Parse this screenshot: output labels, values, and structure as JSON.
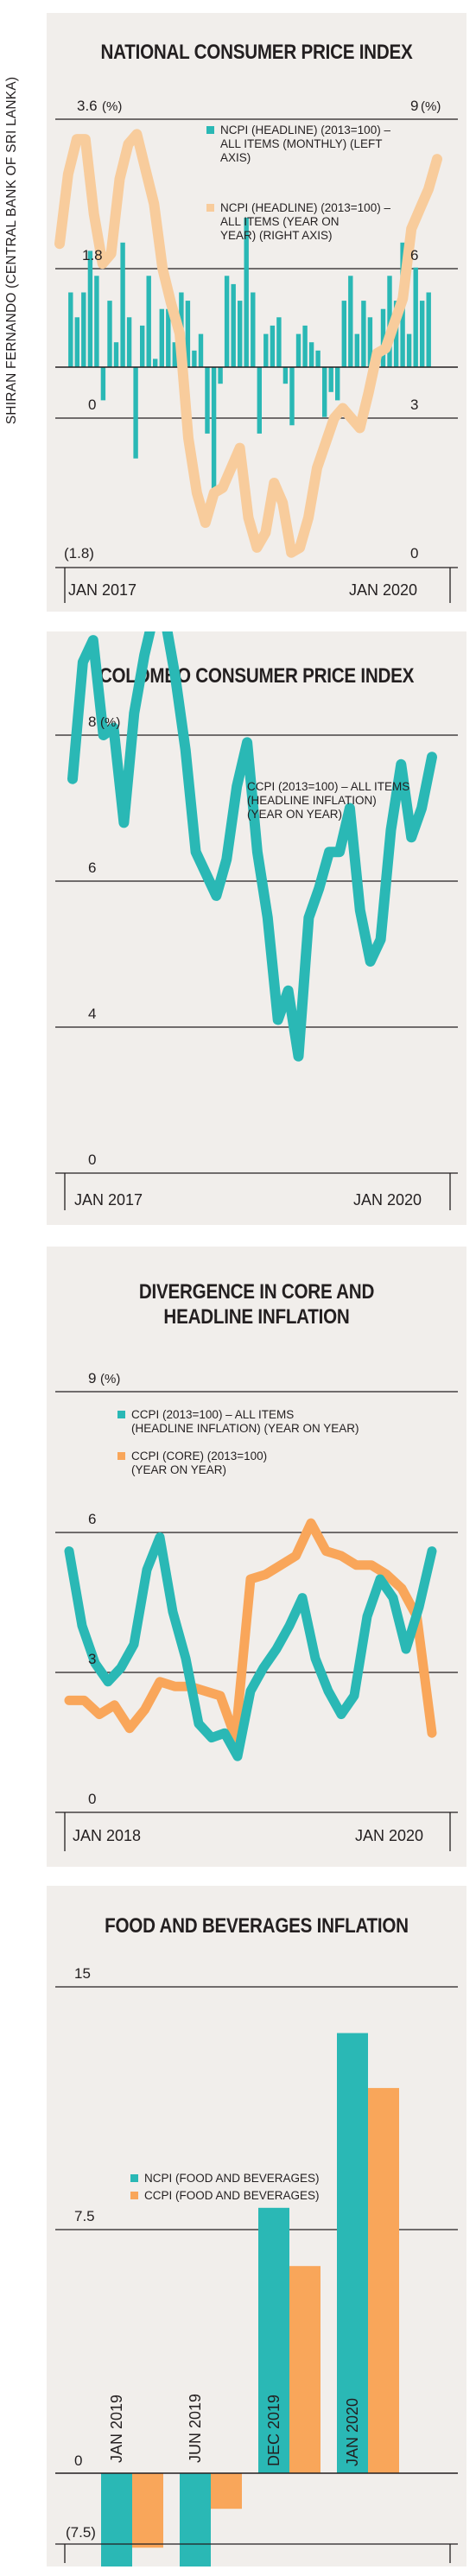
{
  "side_credit": "SHIRAN FERNANDO (CENTRAL BANK OF SRI LANKA)",
  "colors": {
    "teal": "#2ab8b5",
    "light_orange": "#f8cc9c",
    "orange": "#f9a65a",
    "panel_bg": "#f1eeeb",
    "grid": "#231f20"
  },
  "chart_data": [
    {
      "type": "bar+line",
      "title": "NATIONAL CONSUMER PRICE INDEX",
      "left_axis": {
        "ticks": [
          "3.6",
          "1.8",
          "0",
          "(1.8)"
        ],
        "values": [
          3.6,
          1.8,
          0,
          -1.8
        ],
        "unit": "(%)",
        "ylim": [
          -1.8,
          3.6
        ]
      },
      "right_axis": {
        "ticks": [
          "9",
          "6",
          "3",
          "0"
        ],
        "values": [
          9,
          6,
          3,
          0
        ],
        "unit": "(%)",
        "ylim": [
          0,
          9
        ]
      },
      "x_labels": [
        "JAN 2017",
        "JAN 2020"
      ],
      "legend_position": "top-right",
      "series": [
        {
          "name": "NCPI (HEADLINE) (2013=100) – ALL ITEMS (MONTHLY) (LEFT AXIS)",
          "kind": "bar",
          "axis": "left",
          "color": "#2ab8b5",
          "values": [
            0.9,
            0.6,
            0.9,
            1.4,
            1.1,
            -0.4,
            0.8,
            0.3,
            1.5,
            0.6,
            -1.1,
            0.5,
            1.1,
            0.1,
            0.7,
            0.7,
            0.3,
            0.9,
            0.8,
            0.2,
            0.4,
            -0.8,
            -1.6,
            -0.2,
            1.1,
            1.0,
            0.8,
            1.8,
            0.9,
            -0.8,
            0.4,
            0.5,
            0.6,
            -0.2,
            -0.7,
            0.4,
            0.5,
            0.3,
            0.2,
            -0.6,
            -0.3,
            -0.4,
            0.8,
            1.1,
            0.4,
            0.8,
            0.6,
            0.1,
            0.7,
            1.1,
            0.8,
            1.5,
            0.4,
            1.2,
            0.8,
            0.9
          ]
        },
        {
          "name": "NCPI (HEADLINE) (2013=100) – ALL ITEMS (YEAR ON YEAR) (RIGHT AXIS)",
          "kind": "line",
          "axis": "right",
          "color": "#f8cc9c",
          "values": [
            6.5,
            7.9,
            8.6,
            8.6,
            7.1,
            6.1,
            6.3,
            7.8,
            8.5,
            8.7,
            8.0,
            7.3,
            6.0,
            5.3,
            4.7,
            2.6,
            1.5,
            0.9,
            1.5,
            1.6,
            2.0,
            2.4,
            1.0,
            0.4,
            0.7,
            1.7,
            1.3,
            0.3,
            0.4,
            1.0,
            2.0,
            2.5,
            3.0,
            3.2,
            3.0,
            2.8,
            3.5,
            4.3,
            4.4,
            4.9,
            5.4,
            6.8,
            7.2,
            7.6,
            8.2
          ]
        }
      ]
    },
    {
      "type": "line",
      "title": "COLOMBO CONSUMER PRICE INDEX",
      "y_axis": {
        "ticks": [
          "8",
          "6",
          "4",
          "0"
        ],
        "values": [
          8,
          6,
          4,
          0
        ],
        "unit": "(%)",
        "ylim": [
          0,
          8
        ]
      },
      "x_labels": [
        "JAN 2017",
        "JAN 2020"
      ],
      "legend_position": "top-right",
      "series": [
        {
          "name": "CCPI (2013=100) – ALL ITEMS (HEADLINE INFLATION) (YEAR ON YEAR)",
          "color": "#2ab8b5",
          "values": [
            5.4,
            7.0,
            7.3,
            6.0,
            6.1,
            4.8,
            6.3,
            7.1,
            7.7,
            7.6,
            6.8,
            5.8,
            4.4,
            4.1,
            3.8,
            4.3,
            5.3,
            5.9,
            4.4,
            3.5,
            2.1,
            2.5,
            1.6,
            3.5,
            3.9,
            4.4,
            4.4,
            5.0,
            3.6,
            2.9,
            3.2,
            4.7,
            5.6,
            4.6,
            5.0,
            5.7
          ]
        }
      ]
    },
    {
      "type": "line",
      "title": "DIVERGENCE IN CORE AND HEADLINE INFLATION",
      "y_axis": {
        "ticks": [
          "9",
          "6",
          "3",
          "0"
        ],
        "values": [
          9,
          6,
          3,
          0
        ],
        "unit": "(%)",
        "ylim": [
          0,
          9
        ]
      },
      "x_labels": [
        "JAN 2018",
        "JAN 2020"
      ],
      "legend_position": "top-right",
      "series": [
        {
          "name": "CCPI (2013=100) – ALL ITEMS (HEADLINE INFLATION) (YEAR ON YEAR)",
          "color": "#2ab8b5",
          "values": [
            5.6,
            4.0,
            3.2,
            2.8,
            3.1,
            3.6,
            5.2,
            5.9,
            4.3,
            3.3,
            1.9,
            1.6,
            1.7,
            1.2,
            2.6,
            3.1,
            3.5,
            4.0,
            4.6,
            3.3,
            2.6,
            2.1,
            2.5,
            4.2,
            5.0,
            4.6,
            3.5,
            4.4,
            5.6
          ]
        },
        {
          "name": "CCPI (CORE) (2013=100) (YEAR ON YEAR)",
          "color": "#f9a65a",
          "values": [
            2.4,
            2.4,
            2.1,
            2.3,
            1.8,
            2.2,
            2.8,
            2.7,
            2.7,
            2.6,
            2.5,
            1.6,
            5.0,
            5.1,
            5.3,
            5.5,
            6.2,
            5.6,
            5.5,
            5.3,
            5.3,
            5.1,
            4.8,
            4.2,
            1.7
          ]
        }
      ]
    },
    {
      "type": "bar",
      "title": "FOOD AND BEVERAGES INFLATION",
      "y_axis": {
        "ticks": [
          "15",
          "7.5",
          "0",
          "(7.5)"
        ],
        "values": [
          15,
          7.5,
          0,
          -7.5
        ],
        "ylim": [
          -7.5,
          15
        ]
      },
      "categories": [
        "JAN 2019",
        "JUN 2019",
        "DEC 2019",
        "JAN 2020"
      ],
      "legend_position": "top-left",
      "series": [
        {
          "name": "NCPI (FOOD AND BEVERAGES)",
          "color": "#2ab8b5",
          "values": [
            -5.2,
            -3.2,
            8.2,
            13.6
          ]
        },
        {
          "name": "CCPI (FOOD AND BEVERAGES)",
          "color": "#f9a65a",
          "values": [
            -2.3,
            -1.1,
            6.4,
            11.9
          ]
        }
      ]
    }
  ]
}
